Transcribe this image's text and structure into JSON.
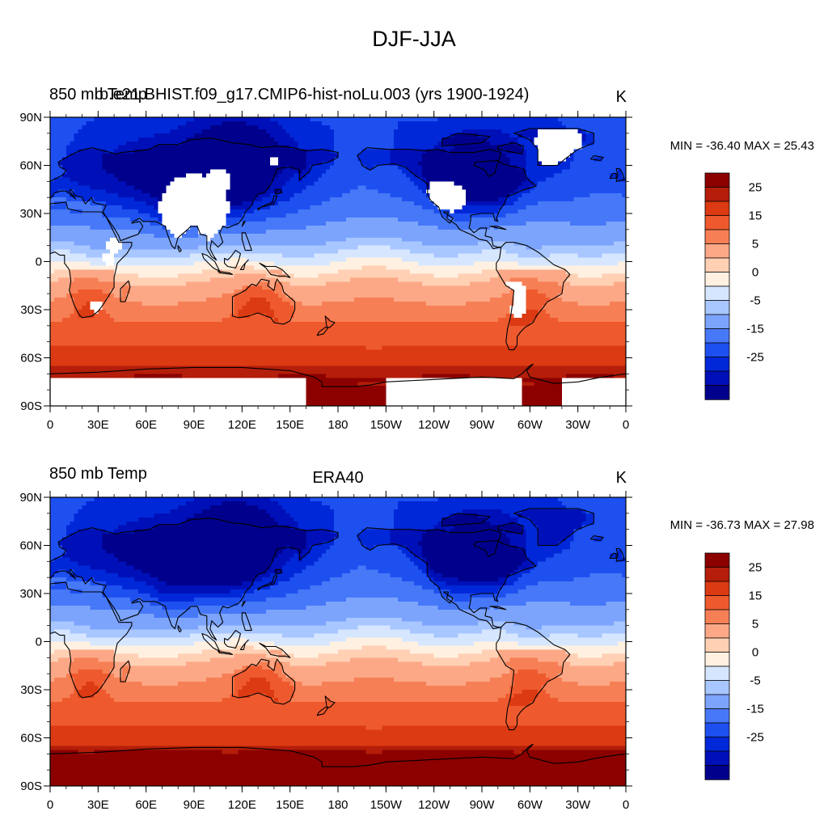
{
  "figure": {
    "title": "DJF-JJA"
  },
  "colors": {
    "palette": [
      "#00008c",
      "#0010b8",
      "#0028d8",
      "#1e50f0",
      "#4678f8",
      "#7ca4fc",
      "#a8c6ff",
      "#d6e6ff",
      "#fff0e1",
      "#ffd0b4",
      "#fca886",
      "#f77f55",
      "#ee5a2e",
      "#dc3a12",
      "#b41e0a",
      "#8c0000"
    ]
  },
  "chart_data": [
    {
      "type": "heatmap",
      "name": "",
      "title_left": "850 mb Temp",
      "title_left_overlay": "b.e21.BHIST.f09_g17.CMIP6-hist-noLu.003 (yrs 1900-1924)",
      "title_center": "",
      "title_right": "K",
      "stats": "MIN = -36.40 MAX =  25.43",
      "xlabels": [
        "0",
        "30E",
        "60E",
        "90E",
        "120E",
        "150E",
        "180",
        "150W",
        "120W",
        "90W",
        "60W",
        "30W",
        "0"
      ],
      "ylabels": [
        "90N",
        "60N",
        "30N",
        "0",
        "30S",
        "60S",
        "90S"
      ],
      "colorbar_labels": [
        "25",
        "15",
        "5",
        "0",
        "-5",
        "-15",
        "-25"
      ],
      "has_missing": true
    },
    {
      "type": "heatmap",
      "name": "",
      "title_left": "850 mb Temp",
      "title_left_overlay": "",
      "title_center": "ERA40",
      "title_right": "K",
      "stats": "MIN = -36.73 MAX =  27.98",
      "xlabels": [
        "0",
        "30E",
        "60E",
        "90E",
        "120E",
        "150E",
        "180",
        "150W",
        "120W",
        "90W",
        "60W",
        "30W",
        "0"
      ],
      "ylabels": [
        "90N",
        "60N",
        "30N",
        "0",
        "30S",
        "60S",
        "90S"
      ],
      "colorbar_labels": [
        "25",
        "15",
        "5",
        "0",
        "-5",
        "-15",
        "-25"
      ],
      "has_missing": false
    }
  ]
}
